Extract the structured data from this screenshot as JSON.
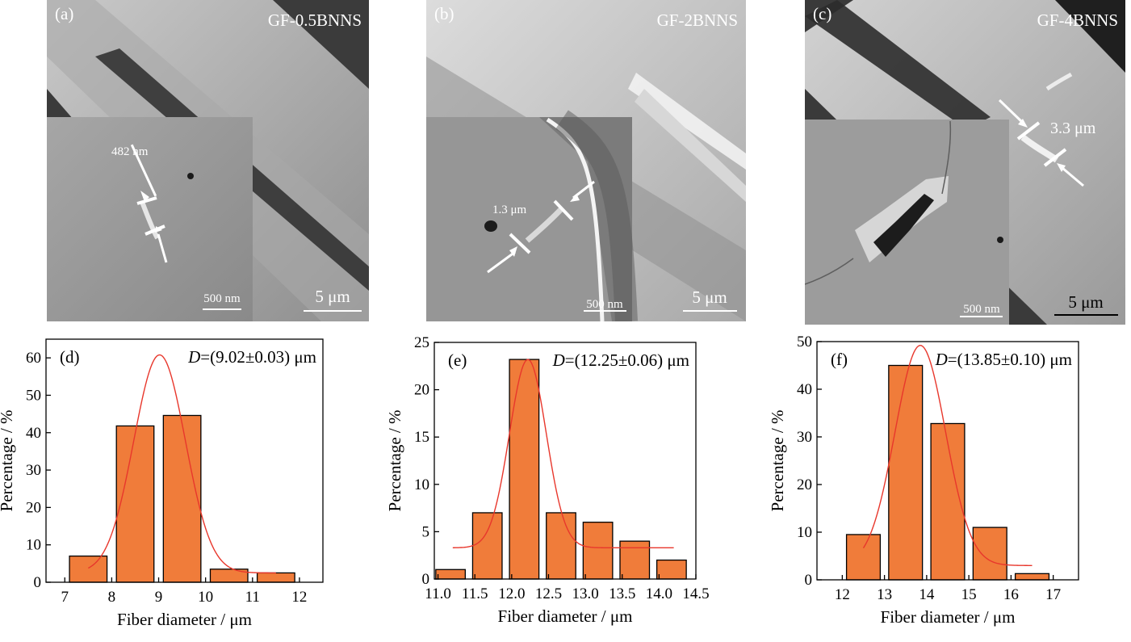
{
  "sem_panels": [
    {
      "tag": "(a)",
      "sample": "GF-0.5BNNS",
      "inset_measure": "482 nm",
      "inset_scale": "500 nm",
      "main_scale": "5 μm"
    },
    {
      "tag": "(b)",
      "sample": "GF-2BNNS",
      "inset_measure": "1.3 μm",
      "inset_scale": "500 nm",
      "main_scale": "5 μm"
    },
    {
      "tag": "(c)",
      "sample": "GF-4BNNS",
      "inset_measure": "3.3 μm",
      "inset_scale": "500 nm",
      "main_scale": "5 μm"
    }
  ],
  "colors": {
    "bar": "#f07c3a",
    "fit": "#e8372c",
    "axis": "#000000"
  },
  "chart_data": [
    {
      "type": "bar",
      "panel": "(d)",
      "annotation": "D=(9.02±0.03) μm",
      "annotation_prefix": "D",
      "annotation_rest": "=(9.02±0.03) μm",
      "xlabel": "Fiber diameter / μm",
      "ylabel": "Percentage / %",
      "xlim": [
        6.6,
        12.5
      ],
      "ylim": [
        0,
        65
      ],
      "xticks": [
        7,
        8,
        9,
        10,
        11,
        12
      ],
      "xtick_labels": [
        "7",
        "8",
        "9",
        "10",
        "11",
        "12"
      ],
      "yticks": [
        0,
        10,
        20,
        30,
        40,
        50,
        60
      ],
      "bins": [
        {
          "x0": 7.1,
          "x1": 7.9,
          "value": 7.0
        },
        {
          "x0": 8.1,
          "x1": 8.9,
          "value": 41.8
        },
        {
          "x0": 9.1,
          "x1": 9.9,
          "value": 44.6
        },
        {
          "x0": 10.1,
          "x1": 10.9,
          "value": 3.5
        },
        {
          "x0": 11.1,
          "x1": 11.9,
          "value": 2.5
        }
      ],
      "fit": {
        "type": "gaussian",
        "center": 9.02,
        "sigma": 0.55,
        "amplitude": 58.3,
        "baseline": 2.5,
        "x_range": [
          7.5,
          11.5
        ]
      }
    },
    {
      "type": "bar",
      "panel": "(e)",
      "annotation": "D=(12.25±0.06) μm",
      "annotation_prefix": "D",
      "annotation_rest": "=(12.25±0.06) μm",
      "xlabel": "Fiber diameter / μm",
      "ylabel": "Percentage / %",
      "xlim": [
        10.95,
        14.5
      ],
      "ylim": [
        0,
        25
      ],
      "xticks": [
        11.0,
        11.5,
        12.0,
        12.5,
        13.0,
        13.5,
        14.0,
        14.5
      ],
      "xtick_labels": [
        "11.0",
        "11.5",
        "12.0",
        "12.5",
        "13.0",
        "13.5",
        "14.0",
        "14.5"
      ],
      "yticks": [
        0,
        5,
        10,
        15,
        20,
        25
      ],
      "bins": [
        {
          "x0": 10.97,
          "x1": 11.37,
          "value": 1.0
        },
        {
          "x0": 11.47,
          "x1": 11.87,
          "value": 7.0
        },
        {
          "x0": 11.97,
          "x1": 12.37,
          "value": 23.2
        },
        {
          "x0": 12.47,
          "x1": 12.87,
          "value": 7.0
        },
        {
          "x0": 12.97,
          "x1": 13.37,
          "value": 6.0
        },
        {
          "x0": 13.47,
          "x1": 13.87,
          "value": 4.0
        },
        {
          "x0": 13.97,
          "x1": 14.37,
          "value": 2.0
        }
      ],
      "fit": {
        "type": "gaussian",
        "center": 12.22,
        "sigma": 0.25,
        "amplitude": 19.9,
        "baseline": 3.3,
        "x_range": [
          11.2,
          14.2
        ]
      }
    },
    {
      "type": "bar",
      "panel": "(f)",
      "annotation": "D=(13.85±0.10) μm",
      "annotation_prefix": "D",
      "annotation_rest": "=(13.85±0.10) μm",
      "xlabel": "Fiber diameter / μm",
      "ylabel": "Percentage / %",
      "xlim": [
        11.4,
        17.6
      ],
      "ylim": [
        0,
        50
      ],
      "xticks": [
        12,
        13,
        14,
        15,
        16,
        17
      ],
      "xtick_labels": [
        "12",
        "13",
        "14",
        "15",
        "16",
        "17"
      ],
      "yticks": [
        0,
        10,
        20,
        30,
        40,
        50
      ],
      "bins": [
        {
          "x0": 12.1,
          "x1": 12.9,
          "value": 9.5
        },
        {
          "x0": 13.1,
          "x1": 13.9,
          "value": 45.0
        },
        {
          "x0": 14.1,
          "x1": 14.9,
          "value": 32.8
        },
        {
          "x0": 15.1,
          "x1": 15.9,
          "value": 11.0
        },
        {
          "x0": 16.1,
          "x1": 16.9,
          "value": 1.3
        }
      ],
      "fit": {
        "type": "gaussian",
        "center": 13.85,
        "sigma": 0.6,
        "amplitude": 46.2,
        "baseline": 3.0,
        "x_range": [
          12.5,
          16.5
        ]
      }
    }
  ]
}
